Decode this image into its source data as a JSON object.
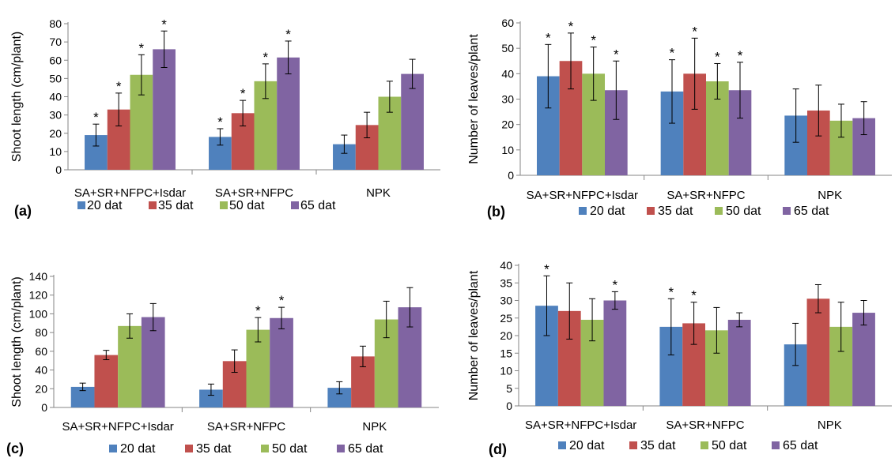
{
  "chart_data": [
    {
      "type": "bar",
      "panel_label": "(a)",
      "ylabel": "Shoot length (cm/plant)",
      "ylim": [
        0,
        80
      ],
      "yticks": [
        0,
        10,
        20,
        30,
        40,
        50,
        60,
        70,
        80
      ],
      "categories": [
        "SA+SR+NFPC+Isdar",
        "SA+SR+NFPC",
        "NPK"
      ],
      "series": [
        {
          "name": "20 dat",
          "color": "#4f81bd",
          "values": [
            19,
            18,
            14
          ],
          "errors": [
            6,
            4.5,
            5
          ],
          "stars": [
            true,
            true,
            false
          ]
        },
        {
          "name": "35 dat",
          "color": "#c0504d",
          "values": [
            33,
            31,
            24.5
          ],
          "errors": [
            9,
            7,
            7
          ],
          "stars": [
            true,
            true,
            false
          ]
        },
        {
          "name": "50 dat",
          "color": "#9bbb59",
          "values": [
            52,
            48.5,
            40
          ],
          "errors": [
            11,
            9.5,
            8.5
          ],
          "stars": [
            true,
            true,
            false
          ]
        },
        {
          "name": "65 dat",
          "color": "#8064a2",
          "values": [
            66,
            61.5,
            52.5
          ],
          "errors": [
            10,
            9,
            8
          ],
          "stars": [
            true,
            true,
            false
          ]
        }
      ],
      "legend_position": "bottom",
      "grid": false
    },
    {
      "type": "bar",
      "panel_label": "(b)",
      "ylabel": "Number of leaves/plant",
      "ylim": [
        0,
        60
      ],
      "yticks": [
        0,
        10,
        20,
        30,
        40,
        50,
        60
      ],
      "categories": [
        "SA+SR+NFPC+Isdar",
        "SA+SR+NFPC",
        "NPK"
      ],
      "series": [
        {
          "name": "20 dat",
          "color": "#4f81bd",
          "values": [
            39,
            33,
            23.5
          ],
          "errors": [
            12.5,
            12.5,
            10.5
          ],
          "stars": [
            true,
            true,
            false
          ]
        },
        {
          "name": "35 dat",
          "color": "#c0504d",
          "values": [
            45,
            40,
            25.5
          ],
          "errors": [
            11,
            14,
            10
          ],
          "stars": [
            true,
            true,
            false
          ]
        },
        {
          "name": "50 dat",
          "color": "#9bbb59",
          "values": [
            40,
            37,
            21.5
          ],
          "errors": [
            10.5,
            7,
            6.5
          ],
          "stars": [
            true,
            true,
            false
          ]
        },
        {
          "name": "65 dat",
          "color": "#8064a2",
          "values": [
            33.5,
            33.5,
            22.5
          ],
          "errors": [
            11.5,
            11,
            6.5
          ],
          "stars": [
            true,
            true,
            false
          ]
        }
      ],
      "legend_position": "bottom",
      "grid": false
    },
    {
      "type": "bar",
      "panel_label": "(c)",
      "ylabel": "Shoot length (cm/plant)",
      "ylim": [
        0,
        140
      ],
      "yticks": [
        0,
        20,
        40,
        60,
        80,
        100,
        120,
        140
      ],
      "categories": [
        "SA+SR+NFPC+Isdar",
        "SA+SR+NFPC",
        "NPK"
      ],
      "series": [
        {
          "name": "20 dat",
          "color": "#4f81bd",
          "values": [
            22,
            19,
            21
          ],
          "errors": [
            4,
            6,
            6.5
          ],
          "stars": [
            false,
            false,
            false
          ]
        },
        {
          "name": "35 dat",
          "color": "#c0504d",
          "values": [
            56,
            49.5,
            54.5
          ],
          "errors": [
            5,
            12,
            11
          ],
          "stars": [
            false,
            false,
            false
          ]
        },
        {
          "name": "50 dat",
          "color": "#9bbb59",
          "values": [
            87,
            83,
            94
          ],
          "errors": [
            13,
            13,
            19.5
          ],
          "stars": [
            false,
            true,
            false
          ]
        },
        {
          "name": "65 dat",
          "color": "#8064a2",
          "values": [
            96.5,
            95.5,
            107
          ],
          "errors": [
            14.5,
            11.5,
            21
          ],
          "stars": [
            false,
            true,
            false
          ]
        }
      ],
      "legend_position": "bottom",
      "grid": false
    },
    {
      "type": "bar",
      "panel_label": "(d)",
      "ylabel": "Number of leaves/plant",
      "ylim": [
        0,
        40
      ],
      "yticks": [
        0,
        5,
        10,
        15,
        20,
        25,
        30,
        35,
        40
      ],
      "categories": [
        "SA+SR+NFPC+Isdar",
        "SA+SR+NFPC",
        "NPK"
      ],
      "series": [
        {
          "name": "20 dat",
          "color": "#4f81bd",
          "values": [
            28.5,
            22.5,
            17.5
          ],
          "errors": [
            8.5,
            8,
            6
          ],
          "stars": [
            true,
            true,
            false
          ]
        },
        {
          "name": "35 dat",
          "color": "#c0504d",
          "values": [
            27,
            23.5,
            30.5
          ],
          "errors": [
            8,
            6,
            4
          ],
          "stars": [
            false,
            true,
            false
          ]
        },
        {
          "name": "50 dat",
          "color": "#9bbb59",
          "values": [
            24.5,
            21.5,
            22.5
          ],
          "errors": [
            6,
            6.5,
            7
          ],
          "stars": [
            false,
            false,
            false
          ]
        },
        {
          "name": "65 dat",
          "color": "#8064a2",
          "values": [
            30,
            24.5,
            26.5
          ],
          "errors": [
            2.5,
            2,
            3.5
          ],
          "stars": [
            true,
            false,
            false
          ]
        }
      ],
      "legend_position": "bottom",
      "grid": false
    }
  ],
  "significance_marker": "*"
}
